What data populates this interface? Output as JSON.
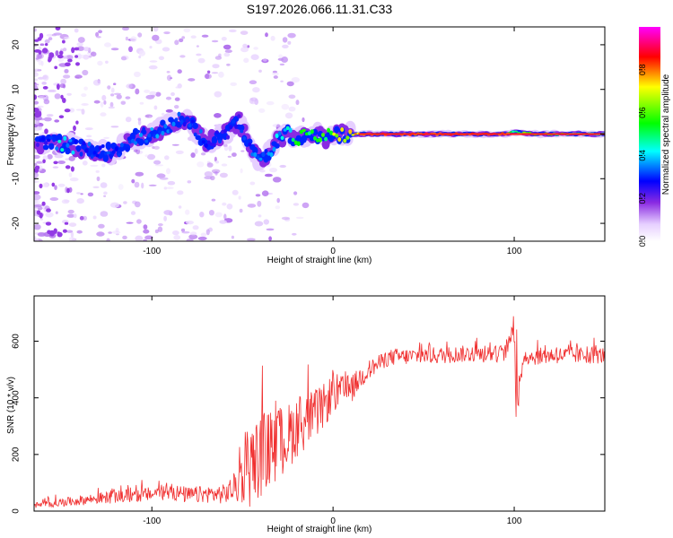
{
  "title": "S197.2026.066.11.31.C33",
  "colors": {
    "line": "#f03030",
    "axis": "#000000",
    "ridge": "#ff2020",
    "colormap": [
      "#ffffff",
      "#e6cfff",
      "#8a2be2",
      "#0000ff",
      "#00ffff",
      "#00ff00",
      "#ffff00",
      "#ff0000",
      "#ff00ff"
    ]
  },
  "chart_data": [
    {
      "type": "heatmap",
      "xlabel": "Height of straight line (km)",
      "ylabel": "Frequency (Hz)",
      "xlim": [
        -165,
        150
      ],
      "ylim": [
        -24,
        24
      ],
      "xticks": [
        -100,
        0,
        100
      ],
      "xtick_labels": [
        "-100",
        "0",
        "100"
      ],
      "yticks": [
        -20,
        -10,
        0,
        10,
        20
      ],
      "ytick_labels": [
        "-20",
        "-10",
        "0",
        "10",
        "20"
      ],
      "ridge": {
        "x": [
          -160,
          -150,
          -140,
          -130,
          -120,
          -110,
          -100,
          -90,
          -80,
          -75,
          -70,
          -60,
          -52,
          -45,
          -40,
          -35,
          -30,
          -25,
          -20,
          -15,
          -10,
          -5,
          0,
          10,
          20,
          40,
          60,
          80,
          95,
          100,
          110,
          130,
          150
        ],
        "y": [
          -2,
          -2,
          -3,
          -4,
          -4,
          -1,
          0,
          2,
          4,
          0,
          -2,
          0,
          3,
          -4,
          -6,
          -4,
          -1,
          0,
          -1,
          0,
          0,
          -1,
          0,
          0,
          0,
          0,
          0,
          0,
          0,
          0.5,
          0,
          0,
          0
        ],
        "amplitude": [
          0.3,
          0.45,
          0.35,
          0.35,
          0.3,
          0.35,
          0.4,
          0.35,
          0.3,
          0.35,
          0.3,
          0.3,
          0.3,
          0.35,
          0.35,
          0.35,
          0.45,
          0.5,
          0.55,
          0.6,
          0.65,
          0.6,
          0.7,
          0.85,
          0.9,
          0.9,
          0.92,
          0.9,
          0.9,
          0.5,
          0.7,
          0.55,
          0.4
        ]
      },
      "colorbar": {
        "label": "Normalized spectral amplitude",
        "ticks": [
          0.0,
          0.2,
          0.4,
          0.6,
          0.8
        ],
        "tick_labels": [
          "0.0",
          "0.2",
          "0.4",
          "0.6",
          "0.8"
        ],
        "range": [
          0,
          1
        ]
      }
    },
    {
      "type": "line",
      "xlabel": "Height of straight line (km)",
      "ylabel": "SNR (10 * v/v)",
      "xlim": [
        -165,
        150
      ],
      "ylim": [
        0,
        760
      ],
      "xticks": [
        -100,
        0,
        100
      ],
      "xtick_labels": [
        "-100",
        "0",
        "100"
      ],
      "yticks": [
        0,
        200,
        400,
        600
      ],
      "ytick_labels": [
        "0",
        "200",
        "400",
        "600"
      ],
      "series": [
        {
          "name": "SNR",
          "x": [
            -165,
            -150,
            -130,
            -110,
            -100,
            -90,
            -80,
            -70,
            -60,
            -55,
            -50,
            -45,
            -40,
            -35,
            -30,
            -25,
            -20,
            -15,
            -10,
            -5,
            0,
            5,
            10,
            15,
            20,
            25,
            30,
            35,
            40,
            50,
            60,
            70,
            80,
            90,
            95,
            98,
            100,
            102,
            105,
            110,
            120,
            130,
            140,
            150
          ],
          "values": [
            20,
            30,
            45,
            55,
            60,
            70,
            55,
            60,
            60,
            80,
            120,
            160,
            200,
            220,
            240,
            260,
            300,
            320,
            340,
            370,
            420,
            420,
            430,
            470,
            500,
            520,
            540,
            545,
            545,
            550,
            550,
            555,
            555,
            555,
            560,
            600,
            700,
            350,
            550,
            545,
            550,
            550,
            550,
            550
          ],
          "noise": [
            10,
            15,
            20,
            25,
            25,
            30,
            30,
            30,
            35,
            50,
            100,
            150,
            150,
            140,
            130,
            120,
            110,
            100,
            90,
            80,
            70,
            60,
            50,
            40,
            35,
            30,
            30,
            30,
            30,
            30,
            30,
            30,
            30,
            30,
            30,
            30,
            60,
            40,
            30,
            30,
            30,
            30,
            30,
            30
          ]
        }
      ]
    }
  ]
}
